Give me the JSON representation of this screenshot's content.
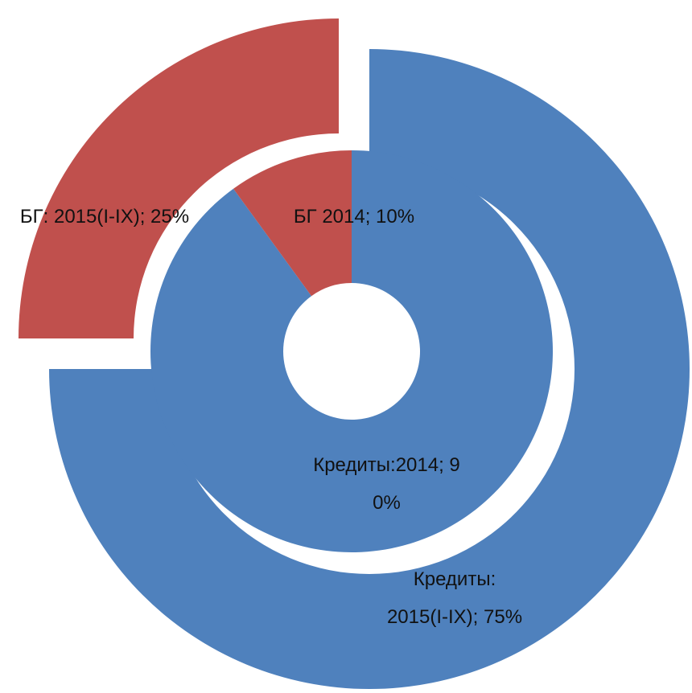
{
  "chart_data": {
    "type": "doughnut",
    "rings": [
      {
        "labels": [
          "Кредиты:2014; 90%",
          "БГ 2014; 10%"
        ],
        "values": [
          90,
          10
        ],
        "colors": [
          "#4f81bd",
          "#c0504d"
        ]
      },
      {
        "labels": [
          "Кредиты: 2015(I-IX); 75%",
          "БГ: 2015(I-IX); 25%"
        ],
        "values": [
          75,
          25
        ],
        "colors": [
          "#4f81bd",
          "#c0504d"
        ]
      }
    ]
  }
}
